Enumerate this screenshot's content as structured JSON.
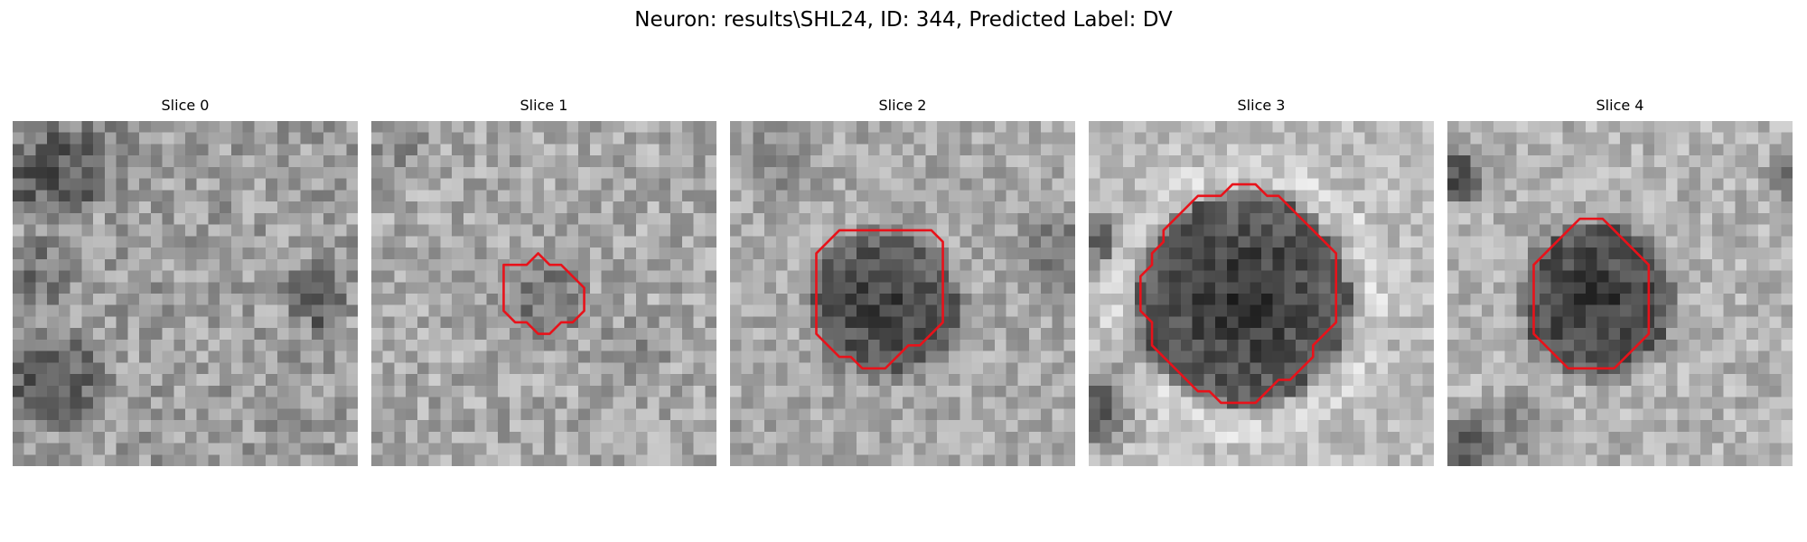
{
  "figure": {
    "title": "Neuron: results\\SHL24, ID: 344, Predicted Label: DV"
  },
  "slices": [
    {
      "label": "Slice 0",
      "has_contour": false,
      "contour": []
    },
    {
      "label": "Slice 1",
      "has_contour": true,
      "contour": [
        [
          13.5,
          12.5
        ],
        [
          14.5,
          11.5
        ],
        [
          15.5,
          12.5
        ],
        [
          16.5,
          12.5
        ],
        [
          17.5,
          13.5
        ],
        [
          18.5,
          14.5
        ],
        [
          18.5,
          16.5
        ],
        [
          17.5,
          17.5
        ],
        [
          16.5,
          17.5
        ],
        [
          15.5,
          18.5
        ],
        [
          14.5,
          18.5
        ],
        [
          13.5,
          17.5
        ],
        [
          12.5,
          17.5
        ],
        [
          11.5,
          16.5
        ],
        [
          11.5,
          12.5
        ],
        [
          12.5,
          12.5
        ]
      ]
    },
    {
      "label": "Slice 2",
      "has_contour": true,
      "contour": [
        [
          10.5,
          9.5
        ],
        [
          17.5,
          9.5
        ],
        [
          18.5,
          10.5
        ],
        [
          18.5,
          17.5
        ],
        [
          17.5,
          18.5
        ],
        [
          16.5,
          19.5
        ],
        [
          15.5,
          19.5
        ],
        [
          14.5,
          20.5
        ],
        [
          13.5,
          21.5
        ],
        [
          11.5,
          21.5
        ],
        [
          10.5,
          20.5
        ],
        [
          9.5,
          20.5
        ],
        [
          8.5,
          19.5
        ],
        [
          7.5,
          18.5
        ],
        [
          7.5,
          11.5
        ],
        [
          8.5,
          10.5
        ],
        [
          9.5,
          9.5
        ]
      ]
    },
    {
      "label": "Slice 3",
      "has_contour": true,
      "contour": [
        [
          13.5,
          5.5
        ],
        [
          14.5,
          5.5
        ],
        [
          15.5,
          6.5
        ],
        [
          16.5,
          6.5
        ],
        [
          17.5,
          7.5
        ],
        [
          18.5,
          8.5
        ],
        [
          19.5,
          9.5
        ],
        [
          20.5,
          10.5
        ],
        [
          21.5,
          11.5
        ],
        [
          21.5,
          17.5
        ],
        [
          20.5,
          18.5
        ],
        [
          19.5,
          19.5
        ],
        [
          19.5,
          20.5
        ],
        [
          18.5,
          21.5
        ],
        [
          17.5,
          22.5
        ],
        [
          16.5,
          22.5
        ],
        [
          15.5,
          23.5
        ],
        [
          14.5,
          24.5
        ],
        [
          11.5,
          24.5
        ],
        [
          10.5,
          23.5
        ],
        [
          9.5,
          23.5
        ],
        [
          8.5,
          22.5
        ],
        [
          7.5,
          21.5
        ],
        [
          6.5,
          20.5
        ],
        [
          5.5,
          19.5
        ],
        [
          5.5,
          17.5
        ],
        [
          4.5,
          16.5
        ],
        [
          4.5,
          13.5
        ],
        [
          5.5,
          12.5
        ],
        [
          5.5,
          11.5
        ],
        [
          6.5,
          10.5
        ],
        [
          6.5,
          9.5
        ],
        [
          7.5,
          8.5
        ],
        [
          8.5,
          7.5
        ],
        [
          9.5,
          6.5
        ],
        [
          11.5,
          6.5
        ],
        [
          12.5,
          5.5
        ]
      ]
    },
    {
      "label": "Slice 4",
      "has_contour": true,
      "contour": [
        [
          12.5,
          8.5
        ],
        [
          13.5,
          8.5
        ],
        [
          14.5,
          9.5
        ],
        [
          15.5,
          10.5
        ],
        [
          16.5,
          11.5
        ],
        [
          17.5,
          12.5
        ],
        [
          17.5,
          18.5
        ],
        [
          16.5,
          19.5
        ],
        [
          15.5,
          20.5
        ],
        [
          14.5,
          21.5
        ],
        [
          10.5,
          21.5
        ],
        [
          9.5,
          20.5
        ],
        [
          8.5,
          19.5
        ],
        [
          7.5,
          18.5
        ],
        [
          7.5,
          12.5
        ],
        [
          8.5,
          11.5
        ],
        [
          9.5,
          10.5
        ],
        [
          10.5,
          9.5
        ],
        [
          11.5,
          8.5
        ]
      ]
    }
  ],
  "contour_color": "#e8121a"
}
